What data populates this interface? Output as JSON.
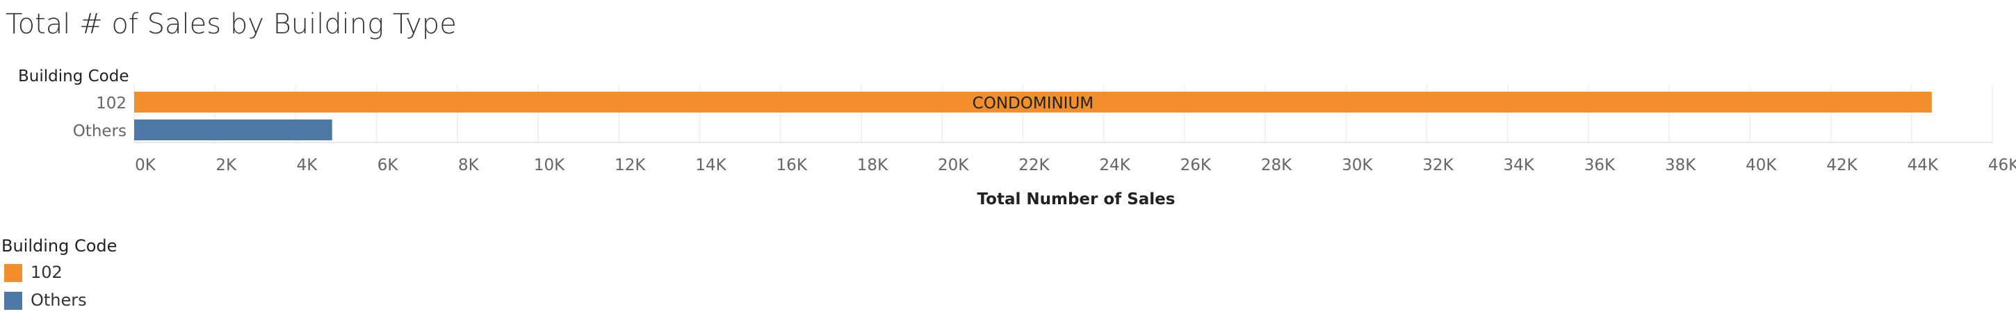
{
  "title": "Total # of Sales by Building Type",
  "chart_data": {
    "type": "bar",
    "orientation": "horizontal",
    "row_header": "Building Code",
    "categories": [
      "102",
      "Others"
    ],
    "values": [
      44500,
      4900
    ],
    "bar_labels": [
      "CONDOMINIUM",
      ""
    ],
    "colors": [
      "#f28e2b",
      "#4e79a7"
    ],
    "xlabel": "Total Number of Sales",
    "xlim": [
      0,
      46000
    ],
    "x_ticks": [
      "0K",
      "2K",
      "4K",
      "6K",
      "8K",
      "10K",
      "12K",
      "14K",
      "16K",
      "18K",
      "20K",
      "22K",
      "24K",
      "26K",
      "28K",
      "30K",
      "32K",
      "34K",
      "36K",
      "38K",
      "40K",
      "42K",
      "44K",
      "46K"
    ],
    "grid": true
  },
  "legend": {
    "title": "Building Code",
    "items": [
      {
        "label": "102",
        "color": "#f28e2b"
      },
      {
        "label": "Others",
        "color": "#4e79a7"
      }
    ]
  }
}
